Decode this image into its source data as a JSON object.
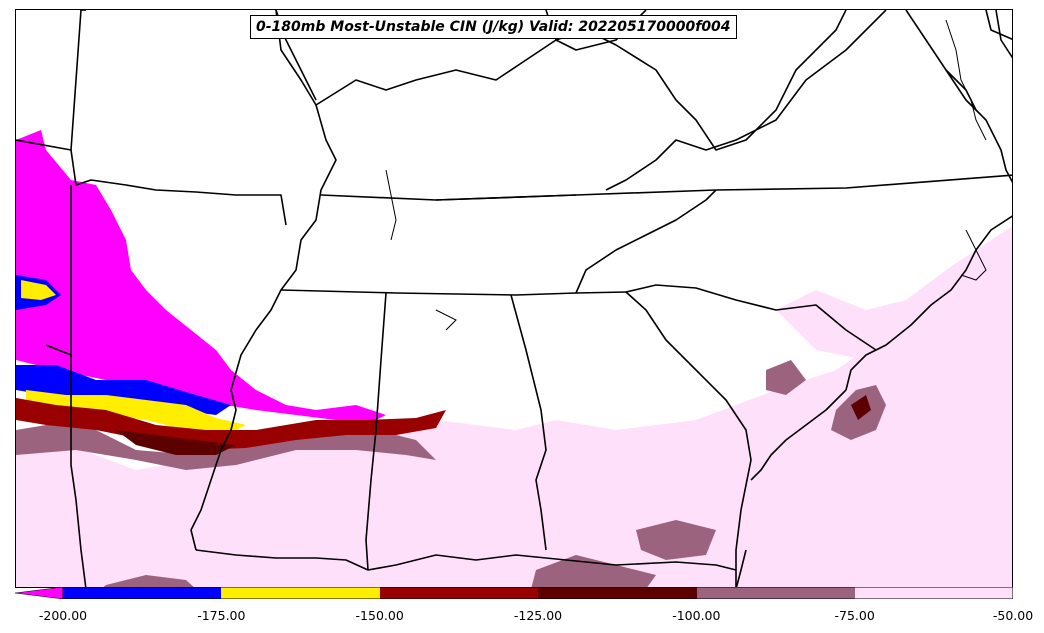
{
  "map": {
    "title": "0-180mb Most-Unstable CIN (J/kg) Valid: 202205170000f004",
    "colorbar": {
      "ticks": [
        "-200.00",
        "-175.00",
        "-150.00",
        "-125.00",
        "-100.00",
        "-75.00",
        "-50.00"
      ],
      "bins": [
        {
          "range": "< -200",
          "color": "#ff00ff"
        },
        {
          "range": "-200 to -175",
          "color": "#0000ff"
        },
        {
          "range": "-175 to -150",
          "color": "#ffee00"
        },
        {
          "range": "-150 to -125",
          "color": "#990000"
        },
        {
          "range": "-125 to -100",
          "color": "#5c0000"
        },
        {
          "range": "-100 to -75",
          "color": "#9c637e"
        },
        {
          "range": "-75 to -50",
          "color": "#ffe0fb"
        }
      ]
    }
  }
}
